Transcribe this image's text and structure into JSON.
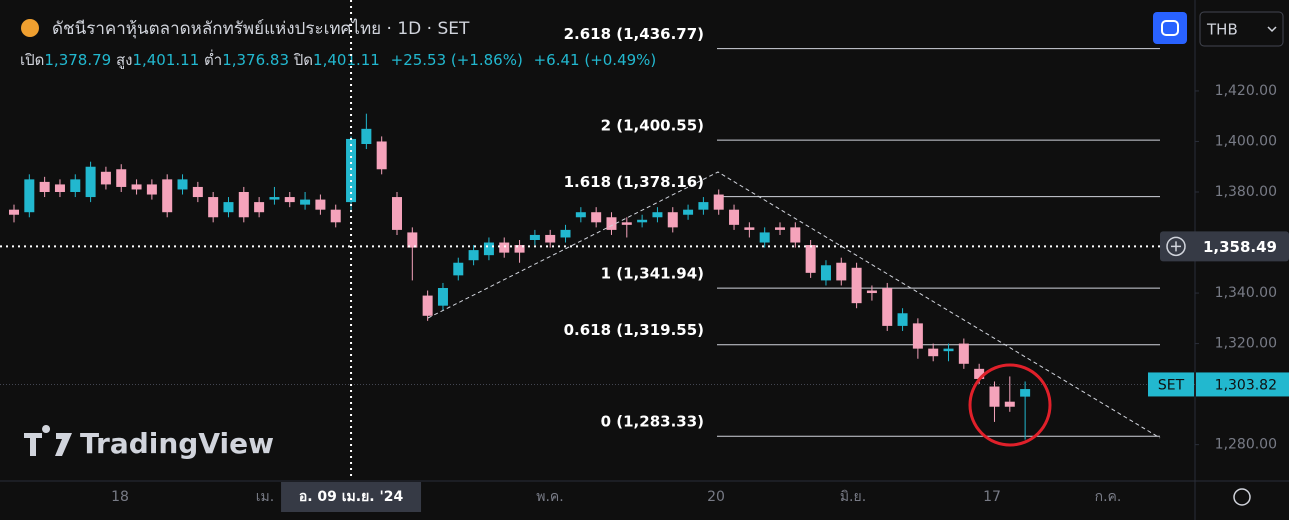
{
  "chart_data": {
    "type": "candlestick",
    "title": "ดัชนีราคาหุ้นตลาดหลักทรัพย์แห่งประเทศไทย · 1D · SET",
    "legend": {
      "open_label": "เปิด",
      "open": "1,378.79",
      "high_label": "สูง",
      "high": "1,401.11",
      "low_label": "ต่ำ",
      "low": "1,376.83",
      "close_label": "ปิด",
      "close": "1,401.11",
      "change": "+25.53 (+1.86%)",
      "change2": "+6.41 (+0.49%)"
    },
    "currency": "THB",
    "watermark": "TradingView",
    "up_color": "#22b8cf",
    "down_color": "#f5a3bb",
    "open": [
      1373,
      1372,
      1384,
      1383,
      1380,
      1378,
      1388,
      1389,
      1383,
      1383,
      1385,
      1381,
      1382,
      1378,
      1372,
      1380,
      1376,
      1377,
      1378,
      1375,
      1377,
      1373,
      1376,
      1399,
      1400,
      1378,
      1364,
      1339,
      1335,
      1347,
      1353,
      1355,
      1360,
      1359,
      1361,
      1363,
      1362,
      1370,
      1372,
      1370,
      1368,
      1368,
      1370,
      1372,
      1371,
      1373,
      1379,
      1373,
      1366,
      1360,
      1366,
      1366,
      1359,
      1345,
      1352,
      1350,
      1341,
      1342,
      1327,
      1328,
      1318,
      1317,
      1320,
      1310,
      1303,
      1297,
      1299
    ],
    "high": [
      1375,
      1387,
      1386,
      1385,
      1387,
      1392,
      1390,
      1391,
      1385,
      1385,
      1387,
      1387,
      1384,
      1380,
      1378,
      1382,
      1378,
      1382,
      1380,
      1380,
      1379,
      1375,
      1402,
      1411,
      1402,
      1380,
      1366,
      1341,
      1344,
      1354,
      1359,
      1362,
      1362,
      1361,
      1365,
      1365,
      1367,
      1374,
      1374,
      1372,
      1370,
      1371,
      1374,
      1374,
      1375,
      1378,
      1381,
      1375,
      1368,
      1366,
      1368,
      1368,
      1361,
      1353,
      1354,
      1352,
      1343,
      1344,
      1334,
      1330,
      1320,
      1320,
      1322,
      1312,
      1305,
      1307,
      1305
    ],
    "low": [
      1368,
      1370,
      1378,
      1378,
      1378,
      1376,
      1381,
      1380,
      1379,
      1377,
      1370,
      1379,
      1376,
      1368,
      1370,
      1368,
      1370,
      1375,
      1374,
      1373,
      1371,
      1366,
      1372,
      1397,
      1387,
      1363,
      1345,
      1329,
      1333,
      1345,
      1351,
      1353,
      1354,
      1352,
      1359,
      1358,
      1360,
      1368,
      1366,
      1363,
      1362,
      1366,
      1368,
      1364,
      1369,
      1371,
      1371,
      1365,
      1362,
      1358,
      1363,
      1358,
      1346,
      1343,
      1343,
      1334,
      1337,
      1325,
      1325,
      1314,
      1313,
      1313,
      1310,
      1304,
      1289,
      1293,
      1282
    ],
    "close": [
      1371,
      1385,
      1380,
      1380,
      1385,
      1390,
      1383,
      1382,
      1381,
      1379,
      1372,
      1385,
      1378,
      1370,
      1376,
      1370,
      1372,
      1378,
      1376,
      1377,
      1373,
      1368,
      1401,
      1405,
      1389,
      1365,
      1358,
      1331,
      1342,
      1352,
      1357,
      1360,
      1356,
      1356,
      1363,
      1360,
      1365,
      1372,
      1368,
      1365,
      1367,
      1369,
      1372,
      1366,
      1373,
      1376,
      1373,
      1367,
      1365,
      1364,
      1365,
      1360,
      1348,
      1351,
      1345,
      1336,
      1340,
      1327,
      1332,
      1318,
      1315,
      1318,
      1312,
      1306,
      1295,
      1295,
      1302
    ],
    "ylim": [
      1266,
      1456
    ],
    "yticks": [
      {
        "value": 1420,
        "label": "1,420.00"
      },
      {
        "value": 1400,
        "label": "1,400.00"
      },
      {
        "value": 1380,
        "label": "1,380.00"
      },
      {
        "value": 1340,
        "label": "1,340.00"
      },
      {
        "value": 1320,
        "label": "1,320.00"
      },
      {
        "value": 1280,
        "label": "1,280.00"
      }
    ],
    "xtick_labels": [
      "18",
      "เม.",
      "พ.ค.",
      "20",
      "มิ.ย.",
      "17",
      "ก.ค."
    ],
    "fib_levels": [
      {
        "value": 1436.77,
        "label": "2.618 (1,436.77)"
      },
      {
        "value": 1400.55,
        "label": "2 (1,400.55)"
      },
      {
        "value": 1378.16,
        "label": "1.618 (1,378.16)"
      },
      {
        "value": 1341.94,
        "label": "1 (1,341.94)"
      },
      {
        "value": 1319.55,
        "label": "0.618 (1,319.55)"
      },
      {
        "value": 1283.33,
        "label": "0 (1,283.33)"
      }
    ],
    "crosshair_price": {
      "value": 1358.49,
      "label": "1,358.49"
    },
    "crosshair_date": "อ. 09 เม.ย. '24",
    "last_price": {
      "value": 1303.82,
      "label": "1,303.82"
    },
    "symbol": "SET"
  }
}
